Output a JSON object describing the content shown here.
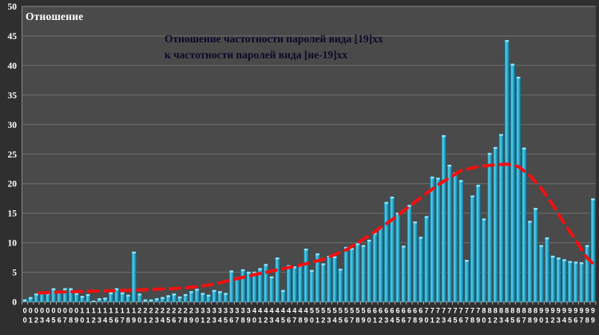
{
  "title": "Отношение",
  "annotation": {
    "line1": "Отношение частотности паролей вида [19]xx",
    "line2": "к частотности паролей вида [не-19]xx"
  },
  "colors": {
    "outer_bg": "#2f2f2f",
    "plot_bg": "#4a4a4a",
    "gridline": "#6f6f6f",
    "plot_border": "#8a8a8a",
    "axis_line": "#c4c4c4",
    "tick": "#a8a8a8",
    "label_text": "#ffffff",
    "annotation_text": "#0a0a28",
    "bar_main": "#35b2d2",
    "bar_light": "#62cfe6",
    "bar_dark": "#0d6a88",
    "bar_cap": "#98e2f2",
    "trend": "#f21010"
  },
  "chart_data": {
    "type": "bar",
    "title": "Отношение частотности паролей вида [19]xx к частотности паролей вида [не-19]xx",
    "xlabel": "",
    "ylabel": "Отношение",
    "ylim": [
      0,
      50
    ],
    "yticks": [
      0,
      5,
      10,
      15,
      20,
      25,
      30,
      35,
      40,
      45,
      50
    ],
    "grid": true,
    "legend": "none",
    "categories": [
      "00",
      "01",
      "02",
      "03",
      "04",
      "05",
      "06",
      "07",
      "08",
      "09",
      "10",
      "11",
      "12",
      "13",
      "14",
      "15",
      "16",
      "17",
      "18",
      "19",
      "20",
      "21",
      "22",
      "23",
      "24",
      "25",
      "26",
      "27",
      "28",
      "29",
      "30",
      "31",
      "32",
      "33",
      "34",
      "35",
      "36",
      "37",
      "38",
      "39",
      "40",
      "41",
      "42",
      "43",
      "44",
      "45",
      "46",
      "47",
      "48",
      "49",
      "50",
      "51",
      "52",
      "53",
      "54",
      "55",
      "56",
      "57",
      "58",
      "59",
      "60",
      "61",
      "62",
      "63",
      "64",
      "65",
      "66",
      "67",
      "68",
      "69",
      "70",
      "71",
      "72",
      "73",
      "74",
      "75",
      "76",
      "77",
      "78",
      "79",
      "80",
      "81",
      "82",
      "83",
      "84",
      "85",
      "86",
      "87",
      "88",
      "89",
      "90",
      "91",
      "92",
      "93",
      "94",
      "95",
      "96",
      "97",
      "98",
      "99"
    ],
    "values": [
      0.4,
      0.8,
      1.4,
      1.7,
      1.5,
      2.3,
      1.9,
      2.3,
      2.3,
      1.5,
      1.0,
      1.3,
      0.2,
      0.6,
      0.7,
      1.6,
      2.3,
      1.6,
      1.2,
      8.5,
      1.4,
      0.4,
      0.4,
      0.6,
      0.8,
      1.1,
      1.4,
      0.9,
      1.3,
      1.8,
      2.2,
      1.5,
      1.2,
      2.0,
      1.8,
      1.5,
      5.3,
      4.2,
      5.5,
      5.1,
      5.1,
      5.7,
      6.4,
      4.3,
      7.5,
      2.0,
      6.2,
      6.0,
      6.2,
      9.0,
      5.4,
      8.2,
      6.5,
      7.8,
      7.7,
      5.6,
      9.3,
      9.1,
      9.9,
      9.6,
      10.5,
      11.7,
      12.6,
      16.9,
      17.8,
      15.1,
      9.5,
      16.4,
      13.6,
      11.0,
      14.5,
      21.2,
      21.0,
      28.2,
      23.2,
      21.9,
      20.6,
      7.1,
      18.0,
      19.8,
      14.1,
      25.2,
      26.2,
      28.4,
      44.3,
      40.3,
      38.1,
      26.1,
      13.7,
      15.9,
      9.6,
      10.9,
      7.8,
      7.5,
      7.2,
      6.9,
      6.8,
      6.7,
      9.6,
      17.5
    ],
    "trend": {
      "type": "dashed-line",
      "color": "#f21010",
      "points": [
        [
          2.5,
          1.5
        ],
        [
          6,
          1.65
        ],
        [
          10,
          1.75
        ],
        [
          14,
          1.85
        ],
        [
          18,
          1.95
        ],
        [
          22,
          2.1
        ],
        [
          26,
          2.25
        ],
        [
          30,
          2.55
        ],
        [
          33,
          3.0
        ],
        [
          36,
          3.7
        ],
        [
          40,
          4.6
        ],
        [
          44,
          5.4
        ],
        [
          48,
          6.2
        ],
        [
          52,
          7.2
        ],
        [
          56,
          8.8
        ],
        [
          60,
          11.2
        ],
        [
          64,
          13.9
        ],
        [
          68,
          16.9
        ],
        [
          72,
          19.8
        ],
        [
          76,
          22.2
        ],
        [
          79,
          22.9
        ],
        [
          82,
          23.2
        ],
        [
          84,
          23.3
        ],
        [
          86,
          22.9
        ],
        [
          88,
          21.4
        ],
        [
          90,
          19.2
        ],
        [
          92,
          16.4
        ],
        [
          94,
          13.3
        ],
        [
          96,
          10.4
        ],
        [
          98,
          7.4
        ],
        [
          99.3,
          6.2
        ]
      ]
    }
  }
}
